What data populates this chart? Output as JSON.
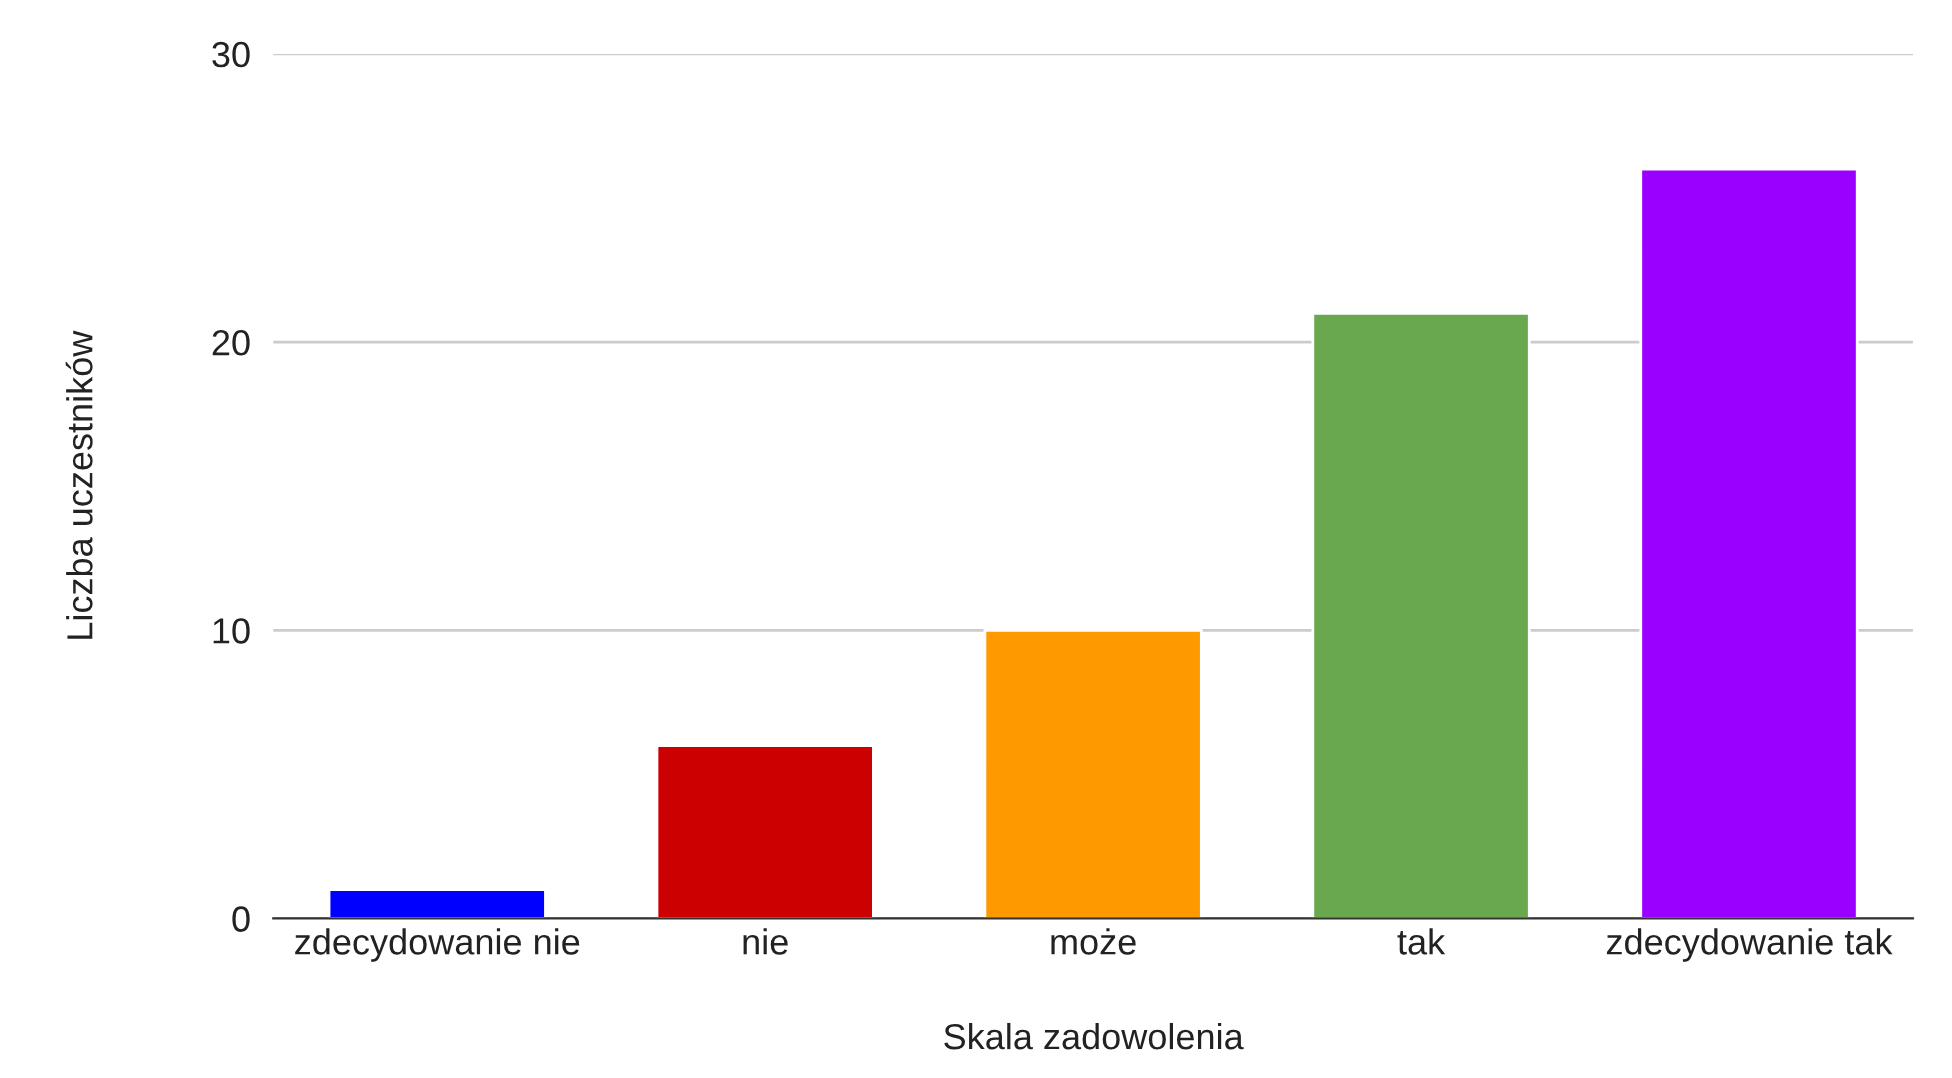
{
  "chart_data": {
    "type": "bar",
    "xlabel": "Skala zadowolenia",
    "ylabel": "Liczba uczestników",
    "categories": [
      "zdecydowanie nie",
      "nie",
      "może",
      "tak",
      "zdecydowanie tak"
    ],
    "values": [
      1,
      6,
      10,
      21,
      26
    ],
    "colors": [
      "#0000ff",
      "#cc0000",
      "#ff9900",
      "#6aa84f",
      "#9900ff"
    ],
    "ylim": [
      0,
      30
    ],
    "yticks": [
      0,
      10,
      20,
      30
    ],
    "grid": "y"
  }
}
